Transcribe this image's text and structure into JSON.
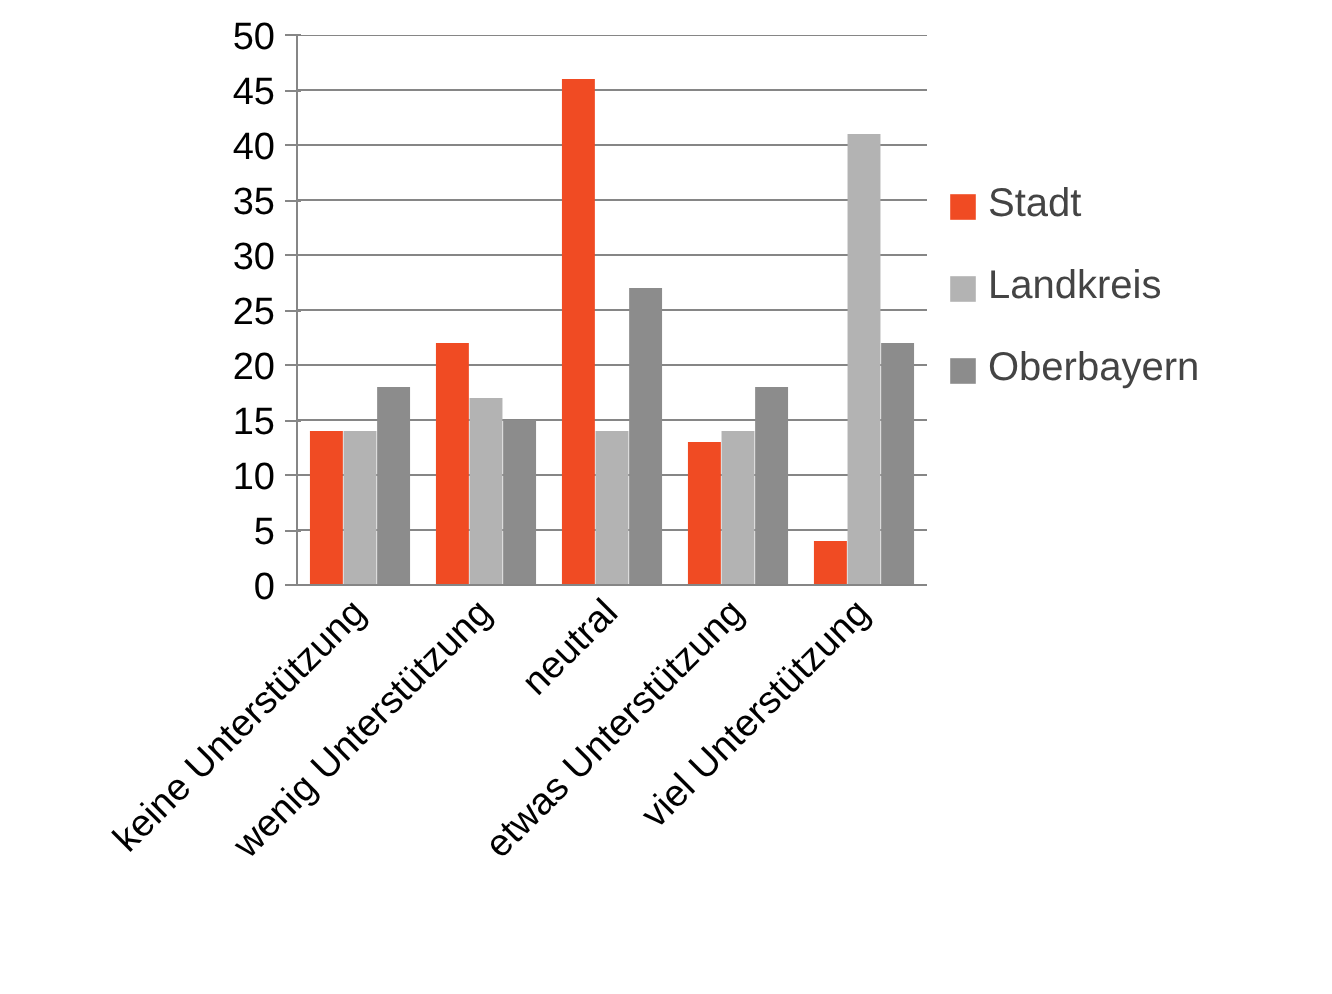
{
  "chart_data": {
    "type": "bar",
    "categories": [
      "keine Unterstützung",
      "wenig Unterstützung",
      "neutral",
      "etwas Unterstützung",
      "viel Unterstützung"
    ],
    "series": [
      {
        "name": "Stadt",
        "color": "#f04b23",
        "values": [
          14,
          22,
          46,
          13,
          4
        ]
      },
      {
        "name": "Landkreis",
        "color": "#b3b3b3",
        "values": [
          14,
          17,
          14,
          14,
          41
        ]
      },
      {
        "name": "Oberbayern",
        "color": "#8c8c8c",
        "values": [
          18,
          15,
          27,
          18,
          22
        ]
      }
    ],
    "ylim": [
      0,
      50
    ],
    "yticks": [
      0,
      5,
      10,
      15,
      20,
      25,
      30,
      35,
      40,
      45,
      50
    ],
    "grid": "y",
    "legend": "right"
  }
}
